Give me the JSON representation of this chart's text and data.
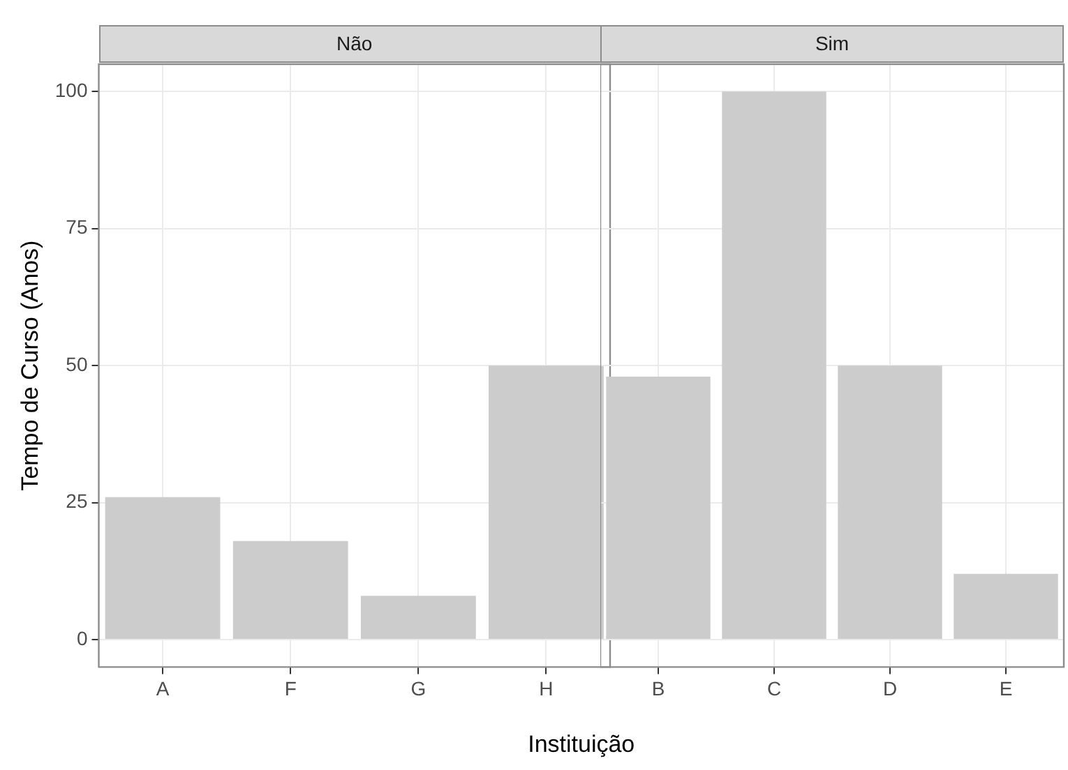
{
  "chart_data": [
    {
      "type": "bar",
      "title": "Não",
      "ylabel": "Tempo de Curso (Anos)",
      "xlabel": "Instituição",
      "categories": [
        "A",
        "F",
        "G",
        "H"
      ],
      "values": [
        26,
        18,
        8,
        50
      ],
      "color": "#cccccc",
      "ylim": [
        -5,
        105
      ],
      "yticks": [
        0,
        25,
        50,
        75,
        100
      ],
      "grid": true
    },
    {
      "type": "bar",
      "title": "Sim",
      "categories": [
        "B",
        "C",
        "D",
        "E"
      ],
      "values": [
        48,
        100,
        50,
        12
      ],
      "color": "#cccccc",
      "ylim": [
        -5,
        105
      ],
      "yticks": [
        0,
        25,
        50,
        75,
        100
      ],
      "grid": true,
      "tick_labels": "x"
    }
  ]
}
